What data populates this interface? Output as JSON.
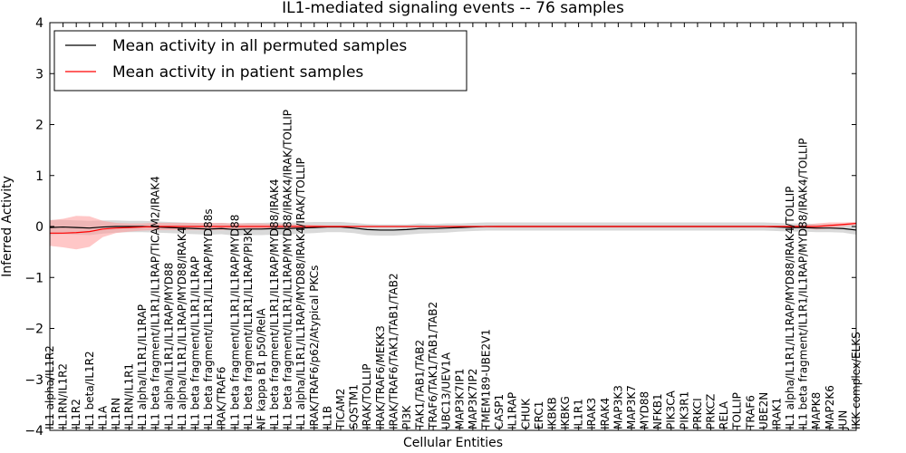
{
  "chart_data": {
    "type": "line",
    "title": "IL1-mediated signaling events -- 76 samples",
    "xlabel": "Cellular Entities",
    "ylabel": "Inferred Activity",
    "ylim": [
      -4,
      4
    ],
    "yticks": [
      -4,
      -3,
      -2,
      -1,
      0,
      1,
      2,
      3,
      4
    ],
    "ytick_labels": [
      "−4",
      "−3",
      "−2",
      "−1",
      "0",
      "1",
      "2",
      "3",
      "4"
    ],
    "legend_position": "top-left",
    "categories": [
      "IL1 alpha/IL1R2",
      "IL1RN/IL1R2",
      "IL1R2",
      "IL1 beta/IL1R2",
      "IL1A",
      "IL1RN",
      "IL1RN/IL1R1",
      "IL1 alpha/IL1R1/IL1RAP",
      "IL1 beta fragment/IL1R1/IL1RAP/TICAM2/IRAK4",
      "IL1 alpha/IL1R1/IL1RAP/MYD88",
      "IL1 alpha/IL1R1/IL1RAP/MYD88/IRAK4",
      "IL1 beta fragment/IL1R1/IL1RAP",
      "IL1 beta fragment/IL1R1/IL1RAP/MYD88s",
      "IRAK/TRAF6",
      "IL1 beta fragment/IL1R1/IL1RAP/MYD88",
      "IL1 beta fragment/IL1R1/IL1RAP/PI3K",
      "NF kappa B1 p50/RelA",
      "IL1 beta fragment/IL1R1/IL1RAP/MYD88/IRAK4",
      "IL1 beta fragment/IL1R1/IL1RAP/MYD88/IRAK4/IRAK/TOLLIP",
      "IL1 alpha/IL1R1/IL1RAP/MYD88/IRAK4/IRAK/TOLLIP",
      "IRAK/TRAF6/p62/Atypical PKCs",
      "IL1B",
      "TICAM2",
      "SQSTM1",
      "IRAK/TOLLIP",
      "IRAK/TRAF6/MEKK3",
      "IRAK/TRAF6/TAK1/TAB1/TAB2",
      "PI3K",
      "TAK1/TAB1/TAB2",
      "TRAF6/TAK1/TAB1/TAB2",
      "UBC13/UEV1A",
      "MAP3K7IP1",
      "MAP3K7IP2",
      "TMEM189-UBE2V1",
      "CASP1",
      "IL1RAP",
      "CHUK",
      "ERC1",
      "IKBKB",
      "IKBKG",
      "IL1R1",
      "IRAK3",
      "IRAK4",
      "MAP3K3",
      "MAP3K7",
      "MYD88",
      "NFKB1",
      "PIK3CA",
      "PIK3R1",
      "PRKCI",
      "PRKCZ",
      "RELA",
      "TOLLIP",
      "TRAF6",
      "UBE2N",
      "IRAK1",
      "IL1 alpha/IL1R1/IL1RAP/MYD88/IRAK4/TOLLIP",
      "IL1 beta fragment/IL1R1/IL1RAP/MYD88/IRAK4/TOLLIP",
      "MAPK8",
      "MAP2K6",
      "JUN",
      "IKK complex/ELKS"
    ],
    "series": [
      {
        "name": "Mean activity in all permuted samples",
        "color": "#000000",
        "band_color": "#bfbfbf",
        "values": [
          -0.02,
          -0.01,
          -0.02,
          -0.03,
          -0.01,
          0.0,
          0.0,
          0.0,
          -0.01,
          -0.02,
          -0.03,
          -0.04,
          -0.05,
          -0.04,
          -0.06,
          -0.05,
          -0.05,
          -0.04,
          -0.04,
          -0.03,
          -0.02,
          -0.01,
          -0.01,
          -0.03,
          -0.06,
          -0.07,
          -0.07,
          -0.06,
          -0.04,
          -0.04,
          -0.03,
          -0.02,
          -0.01,
          0.0,
          0.0,
          0.0,
          0.0,
          0.0,
          0.0,
          0.0,
          0.0,
          0.0,
          0.0,
          0.0,
          0.0,
          0.0,
          0.0,
          0.0,
          0.0,
          0.0,
          0.0,
          0.0,
          0.0,
          0.0,
          0.0,
          -0.01,
          -0.02,
          -0.02,
          -0.03,
          -0.03,
          -0.04,
          -0.07
        ],
        "band": [
          0.15,
          0.14,
          0.14,
          0.14,
          0.13,
          0.12,
          0.11,
          0.11,
          0.11,
          0.11,
          0.11,
          0.11,
          0.11,
          0.11,
          0.12,
          0.12,
          0.12,
          0.12,
          0.12,
          0.11,
          0.11,
          0.1,
          0.1,
          0.1,
          0.11,
          0.11,
          0.11,
          0.1,
          0.1,
          0.09,
          0.09,
          0.08,
          0.08,
          0.08,
          0.08,
          0.08,
          0.08,
          0.08,
          0.08,
          0.08,
          0.08,
          0.08,
          0.08,
          0.08,
          0.08,
          0.08,
          0.08,
          0.08,
          0.08,
          0.08,
          0.08,
          0.08,
          0.08,
          0.08,
          0.08,
          0.08,
          0.08,
          0.08,
          0.08,
          0.08,
          0.08,
          0.09
        ]
      },
      {
        "name": "Mean activity in patient samples",
        "color": "#ff0000",
        "band_color": "#ff9999",
        "values": [
          -0.13,
          -0.13,
          -0.12,
          -0.1,
          -0.05,
          -0.03,
          -0.02,
          -0.01,
          0.0,
          0.0,
          0.0,
          0.0,
          0.0,
          0.0,
          0.0,
          0.0,
          0.0,
          0.0,
          0.0,
          0.0,
          0.0,
          0.0,
          0.0,
          0.0,
          0.0,
          0.0,
          0.0,
          0.0,
          0.0,
          0.0,
          0.0,
          0.0,
          0.0,
          0.0,
          0.0,
          0.0,
          0.0,
          0.0,
          0.0,
          0.0,
          0.0,
          0.0,
          0.0,
          0.0,
          0.0,
          0.0,
          0.0,
          0.0,
          0.0,
          0.0,
          0.0,
          0.0,
          0.0,
          0.0,
          0.0,
          0.0,
          0.0,
          0.0,
          0.0,
          0.02,
          0.04,
          0.06
        ],
        "band": [
          0.25,
          0.28,
          0.33,
          0.3,
          0.16,
          0.1,
          0.08,
          0.07,
          0.07,
          0.07,
          0.07,
          0.07,
          0.07,
          0.07,
          0.06,
          0.06,
          0.06,
          0.05,
          0.05,
          0.04,
          0.03,
          0.02,
          0.02,
          0.01,
          0.01,
          0.01,
          0.01,
          0.01,
          0.01,
          0.01,
          0.01,
          0.01,
          0.01,
          0.01,
          0.02,
          0.02,
          0.02,
          0.02,
          0.02,
          0.02,
          0.02,
          0.02,
          0.02,
          0.02,
          0.02,
          0.02,
          0.02,
          0.02,
          0.02,
          0.02,
          0.02,
          0.02,
          0.02,
          0.02,
          0.02,
          0.02,
          0.02,
          0.03,
          0.06,
          0.06,
          0.04,
          0.03
        ]
      }
    ]
  }
}
